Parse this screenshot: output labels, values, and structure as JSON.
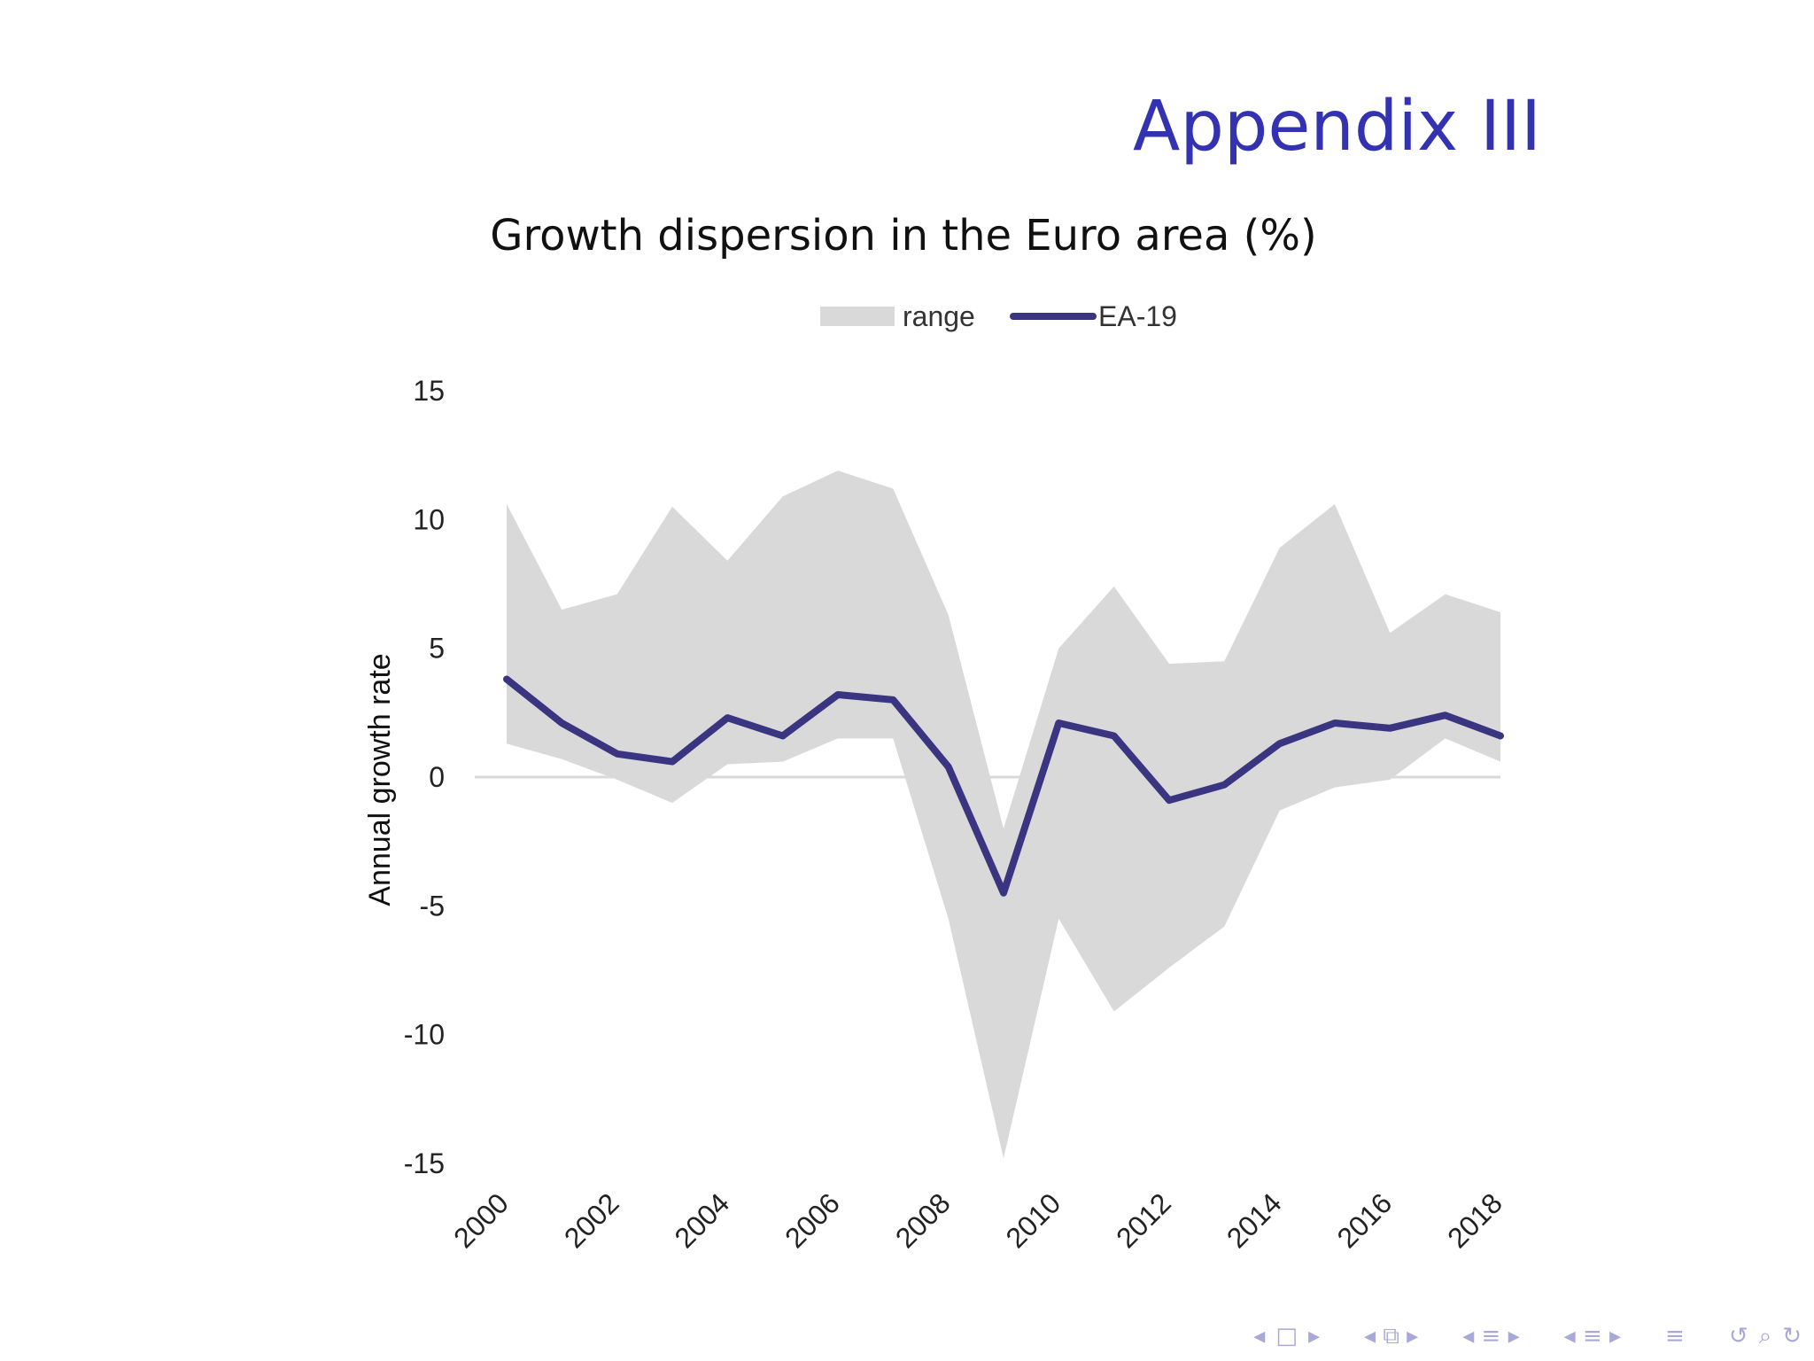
{
  "slide": {
    "title": "Appendix III",
    "subtitle": "Growth dispersion in the Euro area (%)"
  },
  "chart_data": {
    "type": "area",
    "title": "Growth dispersion in the Euro area (%)",
    "ylabel": "Annual growth rate",
    "xlabel": "",
    "x": [
      2000,
      2001,
      2002,
      2003,
      2004,
      2005,
      2006,
      2007,
      2008,
      2009,
      2010,
      2011,
      2012,
      2013,
      2014,
      2015,
      2016,
      2017,
      2018
    ],
    "xticks": [
      "2000",
      "2002",
      "2004",
      "2006",
      "2008",
      "2010",
      "2012",
      "2014",
      "2016",
      "2018"
    ],
    "yticks": [
      "15",
      "10",
      "5",
      "0",
      "-5",
      "-10",
      "-15"
    ],
    "ylim": [
      -15,
      15
    ],
    "legend": {
      "position": "top-center",
      "entries": [
        "range",
        "EA-19"
      ]
    },
    "grid": false,
    "series": [
      {
        "name": "range",
        "kind": "band",
        "color": "#d9d9da",
        "upper": [
          10.6,
          6.5,
          7.1,
          10.5,
          8.4,
          10.9,
          11.9,
          11.2,
          6.3,
          -2.0,
          5.0,
          7.4,
          4.4,
          4.5,
          8.9,
          10.6,
          5.6,
          7.1,
          6.4
        ],
        "lower": [
          1.3,
          0.7,
          -0.1,
          -1.0,
          0.5,
          0.6,
          1.5,
          1.5,
          -5.5,
          -14.8,
          -5.5,
          -9.1,
          -7.4,
          -5.8,
          -1.3,
          -0.4,
          -0.1,
          1.5,
          0.6
        ]
      },
      {
        "name": "EA-19",
        "kind": "line",
        "color": "#3a3580",
        "values": [
          3.8,
          2.1,
          0.9,
          0.6,
          2.3,
          1.6,
          3.2,
          3.0,
          0.4,
          -4.5,
          2.1,
          1.6,
          -0.9,
          -0.3,
          1.3,
          2.1,
          1.9,
          2.4,
          1.6
        ]
      }
    ]
  },
  "nav": {
    "icons": [
      "nav-arrow-left-icon",
      "frame-icon",
      "nav-arrow-right-icon",
      "section-icon",
      "subsection-icon",
      "align-icon",
      "search-icon",
      "refresh-icon"
    ]
  }
}
